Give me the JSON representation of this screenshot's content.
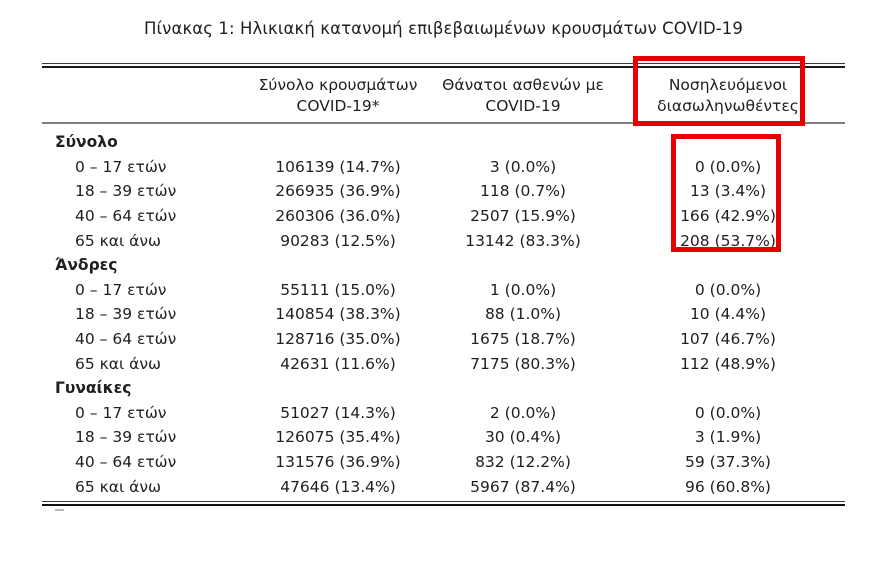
{
  "title": "Πίνακας 1: Ηλικιακή κατανομή επιβεβαιωμένων κρουσμάτων COVID-19",
  "annotations": {
    "highlight_color": "#e60000",
    "highlighted_column": "Νοσηλευόμενοι διασωληνωθέντες"
  },
  "table": {
    "headers": {
      "col2_line1": "Σύνολο κρουσμάτων",
      "col2_line2": "COVID-19*",
      "col3_line1": "Θάνατοι ασθενών με",
      "col3_line2": "COVID-19",
      "col4_line1": "Νοσηλευόμενοι",
      "col4_line2": "διασωληνωθέντες"
    },
    "sections": [
      {
        "label": "Σύνολο",
        "rows": [
          {
            "age": "0 – 17 ετών",
            "cases": "106139 (14.7%)",
            "deaths": "3 (0.0%)",
            "intubated": "0 (0.0%)"
          },
          {
            "age": "18 – 39 ετών",
            "cases": "266935 (36.9%)",
            "deaths": "118 (0.7%)",
            "intubated": "13 (3.4%)"
          },
          {
            "age": "40 – 64 ετών",
            "cases": "260306 (36.0%)",
            "deaths": "2507 (15.9%)",
            "intubated": "166 (42.9%)"
          },
          {
            "age": "65 και άνω",
            "cases": "90283 (12.5%)",
            "deaths": "13142 (83.3%)",
            "intubated": "208 (53.7%)"
          }
        ]
      },
      {
        "label": "Άνδρες",
        "rows": [
          {
            "age": "0 – 17 ετών",
            "cases": "55111 (15.0%)",
            "deaths": "1 (0.0%)",
            "intubated": "0 (0.0%)"
          },
          {
            "age": "18 – 39 ετών",
            "cases": "140854 (38.3%)",
            "deaths": "88 (1.0%)",
            "intubated": "10 (4.4%)"
          },
          {
            "age": "40 – 64 ετών",
            "cases": "128716 (35.0%)",
            "deaths": "1675 (18.7%)",
            "intubated": "107 (46.7%)"
          },
          {
            "age": "65 και άνω",
            "cases": "42631 (11.6%)",
            "deaths": "7175 (80.3%)",
            "intubated": "112 (48.9%)"
          }
        ]
      },
      {
        "label": "Γυναίκες",
        "rows": [
          {
            "age": "0 – 17 ετών",
            "cases": "51027 (14.3%)",
            "deaths": "2 (0.0%)",
            "intubated": "0 (0.0%)"
          },
          {
            "age": "18 – 39 ετών",
            "cases": "126075 (35.4%)",
            "deaths": "30 (0.4%)",
            "intubated": "3 (1.9%)"
          },
          {
            "age": "40 – 64 ετών",
            "cases": "131576 (36.9%)",
            "deaths": "832 (12.2%)",
            "intubated": "59 (37.3%)"
          },
          {
            "age": "65 και άνω",
            "cases": "47646 (13.4%)",
            "deaths": "5967 (87.4%)",
            "intubated": "96 (60.8%)"
          }
        ]
      }
    ]
  }
}
